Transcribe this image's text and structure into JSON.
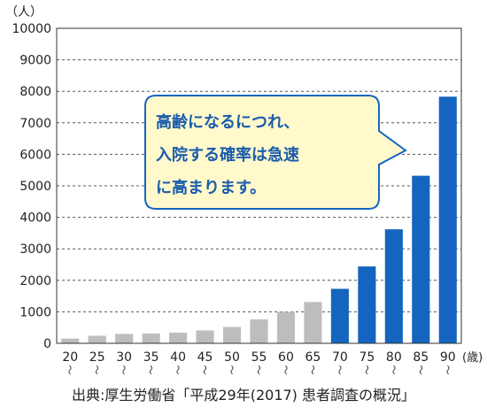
{
  "chart_data": {
    "type": "bar",
    "y_unit": "（人）",
    "x_unit": "(歳)",
    "ylim": [
      0,
      10000
    ],
    "y_ticks": [
      "0",
      "1000",
      "2000",
      "3000",
      "4000",
      "5000",
      "6000",
      "7000",
      "8000",
      "9000",
      "10000"
    ],
    "grid": true,
    "categories": [
      "20",
      "25",
      "30",
      "35",
      "40",
      "45",
      "50",
      "55",
      "60",
      "65",
      "70",
      "75",
      "80",
      "85",
      "90"
    ],
    "values": [
      150,
      240,
      300,
      310,
      340,
      410,
      520,
      760,
      1000,
      1310,
      1730,
      2440,
      3620,
      5320,
      7830
    ],
    "range_mark": "～",
    "colors": {
      "under_70": "#bdbdbd",
      "from_70": "#1565c0",
      "callout_fill": "#fff9cc",
      "callout_border": "#1565c0",
      "callout_text": "#1a5cab"
    },
    "annotation": {
      "lines": [
        "高齢になるにつれ、",
        "入院する確率は急速",
        "に高まります。"
      ]
    }
  },
  "source": "出典:厚生労働省「平成29年(2017) 患者調査の概況」"
}
